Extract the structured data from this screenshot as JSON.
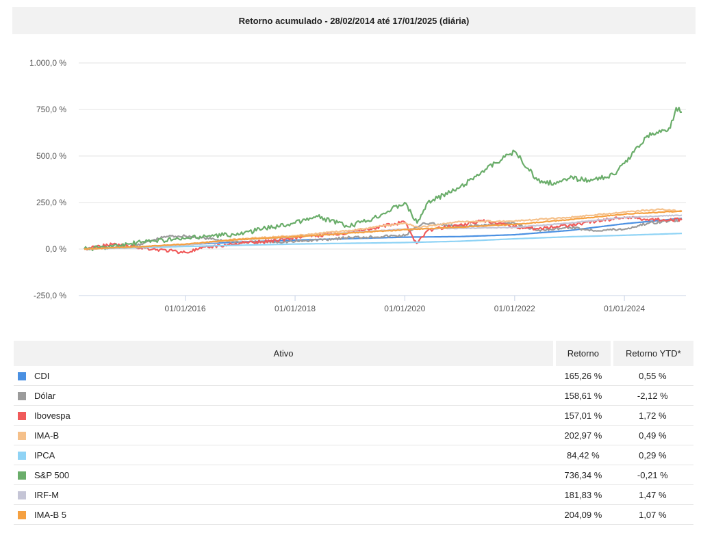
{
  "chart_data": {
    "type": "line",
    "title": "Retorno acumulado - 28/02/2014 até 17/01/2025 (diária)",
    "xlabel": "",
    "ylabel": "",
    "x_range": [
      "2014-02-28",
      "2025-01-17"
    ],
    "ylim": [
      -250,
      1000
    ],
    "y_ticks": [
      -250,
      0,
      250,
      500,
      750,
      1000
    ],
    "y_tick_labels": [
      "-250,0 %",
      "0,0 %",
      "250,0 %",
      "500,0 %",
      "750,0 %",
      "1.000,0 %"
    ],
    "x_ticks": [
      "2016-01-01",
      "2018-01-01",
      "2020-01-01",
      "2022-01-01",
      "2024-01-01"
    ],
    "x_tick_labels": [
      "01/01/2016",
      "01/01/2018",
      "01/01/2020",
      "01/01/2022",
      "01/01/2024"
    ],
    "grid": true,
    "series": [
      {
        "name": "CDI",
        "color": "#4a90e2",
        "x": [
          "2014-02-28",
          "2015-01-01",
          "2016-01-01",
          "2017-01-01",
          "2018-01-01",
          "2019-01-01",
          "2020-01-01",
          "2021-01-01",
          "2022-01-01",
          "2023-01-01",
          "2024-01-01",
          "2025-01-17"
        ],
        "y": [
          0,
          10,
          24,
          38,
          48,
          56,
          64,
          67,
          77,
          100,
          136,
          165
        ]
      },
      {
        "name": "Dólar",
        "color": "#9b9b9b",
        "x": [
          "2014-02-28",
          "2015-01-01",
          "2015-09-01",
          "2016-01-01",
          "2017-01-01",
          "2018-01-01",
          "2019-01-01",
          "2020-01-01",
          "2020-05-01",
          "2021-01-01",
          "2022-01-01",
          "2022-06-01",
          "2023-01-01",
          "2023-06-01",
          "2024-01-01",
          "2024-06-01",
          "2025-01-17"
        ],
        "y": [
          0,
          12,
          68,
          70,
          36,
          40,
          62,
          72,
          140,
          120,
          138,
          100,
          118,
          100,
          106,
          138,
          158
        ]
      },
      {
        "name": "Ibovespa",
        "color": "#f05a5a",
        "x": [
          "2014-02-28",
          "2014-09-01",
          "2015-06-01",
          "2016-01-01",
          "2016-06-01",
          "2017-01-01",
          "2017-06-01",
          "2018-01-01",
          "2019-01-01",
          "2019-12-01",
          "2020-01-01",
          "2020-03-20",
          "2020-06-01",
          "2021-01-01",
          "2021-06-01",
          "2022-01-01",
          "2022-06-01",
          "2023-01-01",
          "2024-01-01",
          "2024-06-01",
          "2025-01-17"
        ],
        "y": [
          0,
          25,
          0,
          -18,
          10,
          32,
          38,
          62,
          90,
          140,
          145,
          30,
          100,
          130,
          150,
          120,
          110,
          130,
          172,
          160,
          157
        ]
      },
      {
        "name": "IMA-B",
        "color": "#f5c08a",
        "x": [
          "2014-02-28",
          "2015-01-01",
          "2016-01-01",
          "2017-01-01",
          "2018-01-01",
          "2019-01-01",
          "2020-01-01",
          "2020-04-01",
          "2021-01-01",
          "2022-01-01",
          "2023-01-01",
          "2024-01-01",
          "2024-09-01",
          "2025-01-17"
        ],
        "y": [
          0,
          8,
          22,
          55,
          72,
          100,
          140,
          115,
          148,
          150,
          170,
          200,
          213,
          203
        ]
      },
      {
        "name": "IPCA",
        "color": "#8fd3f5",
        "x": [
          "2014-02-28",
          "2016-01-01",
          "2018-01-01",
          "2020-01-01",
          "2021-01-01",
          "2022-01-01",
          "2023-01-01",
          "2024-01-01",
          "2025-01-17"
        ],
        "y": [
          0,
          14,
          27,
          35,
          42,
          55,
          66,
          74,
          84
        ]
      },
      {
        "name": "S&P 500",
        "color": "#6aad6a",
        "x": [
          "2014-02-28",
          "2014-09-01",
          "2015-06-01",
          "2016-01-01",
          "2016-06-01",
          "2017-01-01",
          "2017-06-01",
          "2018-01-01",
          "2018-06-01",
          "2018-12-24",
          "2019-06-01",
          "2019-12-31",
          "2020-03-23",
          "2020-06-01",
          "2021-01-01",
          "2021-06-01",
          "2021-12-31",
          "2022-06-01",
          "2022-10-01",
          "2023-01-01",
          "2023-06-01",
          "2023-10-27",
          "2024-01-01",
          "2024-06-01",
          "2024-11-01",
          "2024-12-10",
          "2025-01-17"
        ],
        "y": [
          0,
          15,
          45,
          55,
          70,
          80,
          110,
          140,
          175,
          120,
          165,
          250,
          140,
          250,
          330,
          420,
          525,
          370,
          350,
          380,
          370,
          400,
          460,
          610,
          650,
          760,
          736
        ]
      },
      {
        "name": "IRF-M",
        "color": "#c5c5d6",
        "x": [
          "2014-02-28",
          "2015-01-01",
          "2016-01-01",
          "2017-01-01",
          "2018-01-01",
          "2019-01-01",
          "2020-01-01",
          "2021-01-01",
          "2022-01-01",
          "2023-01-01",
          "2024-01-01",
          "2025-01-17"
        ],
        "y": [
          0,
          10,
          22,
          50,
          65,
          88,
          108,
          112,
          116,
          140,
          170,
          182
        ]
      },
      {
        "name": "IMA-B 5",
        "color": "#f5a040",
        "x": [
          "2014-02-28",
          "2015-01-01",
          "2016-01-01",
          "2017-01-01",
          "2018-01-01",
          "2019-01-01",
          "2020-01-01",
          "2021-01-01",
          "2022-01-01",
          "2023-01-01",
          "2024-01-01",
          "2025-01-17"
        ],
        "y": [
          0,
          10,
          26,
          52,
          66,
          86,
          104,
          118,
          132,
          158,
          188,
          204
        ]
      }
    ]
  },
  "table": {
    "headers": {
      "asset": "Ativo",
      "return": "Retorno",
      "ytd": "Retorno YTD*"
    },
    "rows": [
      {
        "name": "CDI",
        "color": "#4a90e2",
        "return": "165,26 %",
        "ytd": "0,55 %"
      },
      {
        "name": "Dólar",
        "color": "#9b9b9b",
        "return": "158,61 %",
        "ytd": "-2,12 %"
      },
      {
        "name": "Ibovespa",
        "color": "#f05a5a",
        "return": "157,01 %",
        "ytd": "1,72 %"
      },
      {
        "name": "IMA-B",
        "color": "#f5c08a",
        "return": "202,97 %",
        "ytd": "0,49 %"
      },
      {
        "name": "IPCA",
        "color": "#8fd3f5",
        "return": "84,42 %",
        "ytd": "0,29 %"
      },
      {
        "name": "S&P 500",
        "color": "#6aad6a",
        "return": "736,34 %",
        "ytd": "-0,21 %"
      },
      {
        "name": "IRF-M",
        "color": "#c5c5d6",
        "return": "181,83 %",
        "ytd": "1,47 %"
      },
      {
        "name": "IMA-B 5",
        "color": "#f5a040",
        "return": "204,09 %",
        "ytd": "1,07 %"
      }
    ]
  }
}
